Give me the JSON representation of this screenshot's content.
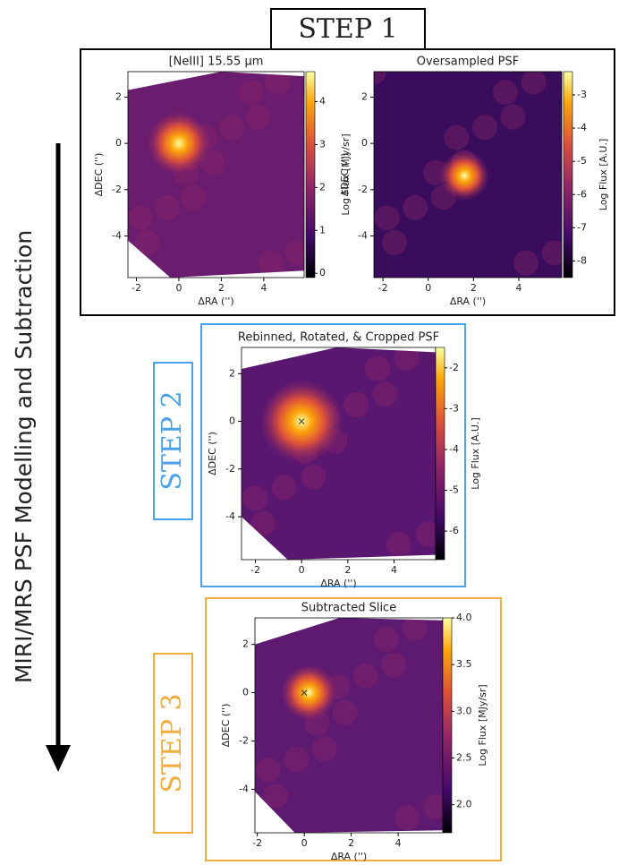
{
  "steps": {
    "step1": "STEP 1",
    "step2": "STEP 2",
    "step3": "STEP 3"
  },
  "arrow_label": "MIRI/MRS PSF Modelling and Subtraction",
  "panels": [
    {
      "title": "[NeIII] 15.55 μm",
      "xlabel": "ΔRA ('')",
      "ylabel": "ΔDEC ('')",
      "xlim": [
        -2.4,
        5.9
      ],
      "ylim": [
        -5.8,
        3.1
      ],
      "xticks": [
        -2,
        0,
        2,
        4
      ],
      "yticks": [
        -4,
        -2,
        0,
        2
      ],
      "colorbar": {
        "label": "Log Flux [MJy/sr]",
        "lim": [
          -0.1,
          4.7
        ],
        "ticks": [
          0,
          1,
          2,
          3,
          4
        ]
      }
    },
    {
      "title": "Oversampled PSF",
      "xlabel": "ΔRA ('')",
      "ylabel": "ΔDEC ('')",
      "xlim": [
        -2.4,
        5.9
      ],
      "ylim": [
        -5.8,
        3.1
      ],
      "xticks": [
        -2,
        0,
        2,
        4
      ],
      "yticks": [
        -4,
        -2,
        0,
        2
      ],
      "colorbar": {
        "label": "Log Flux [A.U.]",
        "lim": [
          -8.5,
          -2.3
        ],
        "ticks": [
          -8,
          -7,
          -6,
          -5,
          -4,
          -3
        ]
      }
    },
    {
      "title": "Rebinned, Rotated, & Cropped PSF",
      "xlabel": "ΔRA ('')",
      "ylabel": "ΔDEC ('')",
      "xlim": [
        -2.6,
        5.8
      ],
      "ylim": [
        -5.8,
        3.1
      ],
      "xticks": [
        -2,
        0,
        2,
        4
      ],
      "yticks": [
        -4,
        -2,
        0,
        2
      ],
      "colorbar": {
        "label": "Log Flux [A.U.]",
        "lim": [
          -6.7,
          -1.5
        ],
        "ticks": [
          -6,
          -5,
          -4,
          -3,
          -2
        ]
      }
    },
    {
      "title": "Subtracted Slice",
      "xlabel": "ΔRA ('')",
      "ylabel": "ΔDEC ('')",
      "xlim": [
        -2.1,
        5.9
      ],
      "ylim": [
        -5.8,
        3.1
      ],
      "xticks": [
        -2,
        0,
        2,
        4
      ],
      "yticks": [
        -4,
        -2,
        0,
        2
      ],
      "colorbar": {
        "label": "Log Flux [MJy/sr]",
        "lim": [
          1.7,
          4.0
        ],
        "ticks": [
          {
            "value": 2.0,
            "label": "2.0"
          },
          {
            "value": 2.5,
            "label": "2.5"
          },
          {
            "value": 3.0,
            "label": "3.0"
          },
          {
            "value": 3.5,
            "label": "3.5"
          },
          {
            "value": 4.0,
            "label": "4.0"
          }
        ]
      }
    }
  ]
}
